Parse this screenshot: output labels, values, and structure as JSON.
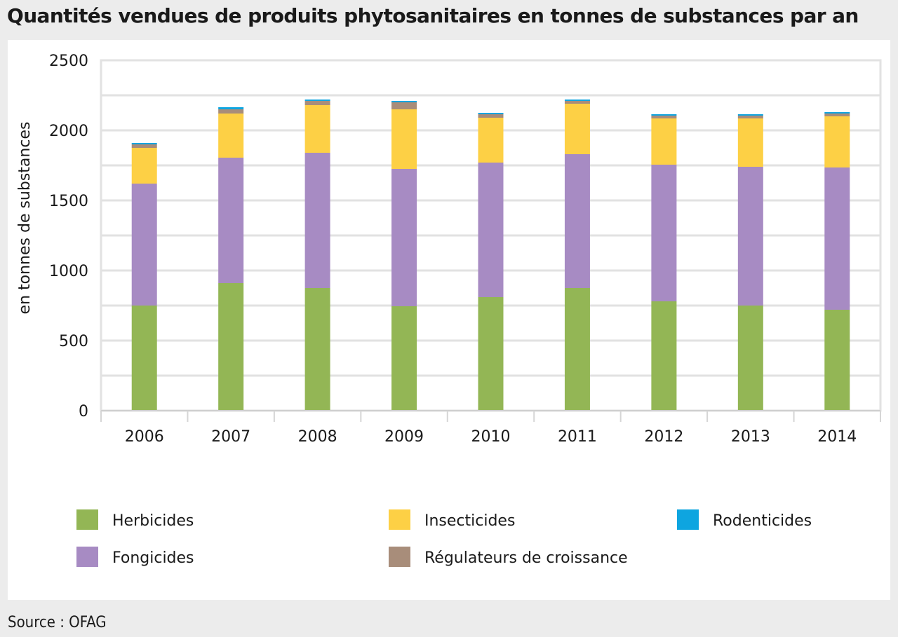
{
  "title": "Quantités vendues de produits phytosanitaires en tonnes de substances par an",
  "source": "Source : OFAG",
  "chart_data": {
    "type": "bar",
    "stacked": true,
    "title": "Quantités vendues de produits phytosanitaires en tonnes de substances par an",
    "xlabel": "",
    "ylabel": "en tonnes de substances",
    "ylim": [
      0,
      2500
    ],
    "yticks": [
      "0",
      "500",
      "1000",
      "1500",
      "2000",
      "2500"
    ],
    "grid": true,
    "legend_position": "bottom",
    "categories": [
      "2006",
      "2007",
      "2008",
      "2009",
      "2010",
      "2011",
      "2012",
      "2013",
      "2014"
    ],
    "series": [
      {
        "name": "Herbicides",
        "color": "#93b655",
        "values": [
          750,
          910,
          875,
          745,
          810,
          875,
          780,
          750,
          720
        ]
      },
      {
        "name": "Fongicides",
        "color": "#a78bc3",
        "values": [
          870,
          895,
          965,
          980,
          960,
          955,
          975,
          990,
          1015
        ]
      },
      {
        "name": "Insecticides",
        "color": "#fdd045",
        "values": [
          255,
          315,
          340,
          425,
          320,
          360,
          330,
          345,
          365
        ]
      },
      {
        "name": "Régulateurs de croissance",
        "color": "#a88d7a",
        "values": [
          25,
          30,
          30,
          50,
          25,
          20,
          20,
          20,
          20
        ]
      },
      {
        "name": "Rodenticides",
        "color": "#0ea5e0",
        "values": [
          10,
          15,
          10,
          10,
          10,
          10,
          10,
          10,
          10
        ]
      }
    ],
    "legend_order": [
      "Herbicides",
      "Insecticides",
      "Rodenticides",
      "Fongicides",
      "Régulateurs de croissance"
    ]
  }
}
